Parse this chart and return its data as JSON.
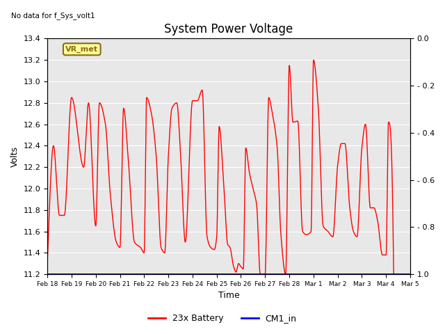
{
  "title": "System Power Voltage",
  "top_left_note": "No data for f_Sys_volt1",
  "ylabel_left": "Volts",
  "xlabel": "Time",
  "ylim_left": [
    11.2,
    13.4
  ],
  "ylim_right": [
    0.0,
    1.0
  ],
  "yticks_left": [
    11.2,
    11.4,
    11.6,
    11.8,
    12.0,
    12.2,
    12.4,
    12.6,
    12.8,
    13.0,
    13.2,
    13.4
  ],
  "yticks_right": [
    0.0,
    0.2,
    0.4,
    0.6,
    0.8,
    1.0
  ],
  "xtick_labels": [
    "Feb 18",
    "Feb 19",
    "Feb 20",
    "Feb 21",
    "Feb 22",
    "Feb 23",
    "Feb 24",
    "Feb 25",
    "Feb 26",
    "Feb 27",
    "Feb 28",
    "Mar 1",
    "Mar 2",
    "Mar 3",
    "Mar 4",
    "Mar 5"
  ],
  "annotation_label": "VR_met",
  "annotation_color": "#8B6914",
  "annotation_bg": "#FFFF99",
  "line_color_battery": "#FF0000",
  "line_color_cm1": "#0000FF",
  "legend_labels": [
    "23x Battery",
    "CM1_in"
  ],
  "background_color": "#E8E8E8",
  "grid_color": "#FFFFFF",
  "title_fontsize": 12,
  "axis_label_fontsize": 9,
  "tick_fontsize": 8,
  "right_tick_labels": [
    " 1.0",
    " 0.8",
    " 0.6",
    " 0.4",
    " 0.2",
    " 0.0"
  ]
}
